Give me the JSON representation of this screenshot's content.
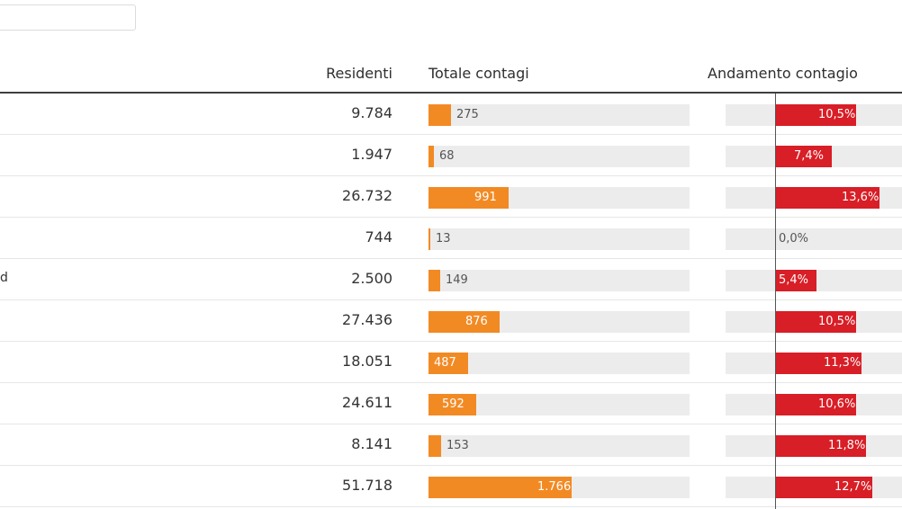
{
  "header": {
    "residenti": "Residenti",
    "totale_contagi": "Totale contagi",
    "andamento_contagio": "Andamento contagio"
  },
  "colors": {
    "totale_bar": "#f28a24",
    "andamento_bar": "#d81e26",
    "track": "#ececec"
  },
  "rows": [
    {
      "name": "",
      "residenti": "9.784",
      "totale": "275",
      "totale_value": 275,
      "andamento": "10,5%",
      "andamento_value": 10.5
    },
    {
      "name": "",
      "residenti": "1.947",
      "totale": "68",
      "totale_value": 68,
      "andamento": "7,4%",
      "andamento_value": 7.4
    },
    {
      "name": "",
      "residenti": "26.732",
      "totale": "991",
      "totale_value": 991,
      "andamento": "13,6%",
      "andamento_value": 13.6
    },
    {
      "name": "",
      "residenti": "744",
      "totale": "13",
      "totale_value": 13,
      "andamento": "0,0%",
      "andamento_value": 0
    },
    {
      "name": "d",
      "residenti": "2.500",
      "totale": "149",
      "totale_value": 149,
      "andamento": "5,4%",
      "andamento_value": 5.4
    },
    {
      "name": "",
      "residenti": "27.436",
      "totale": "876",
      "totale_value": 876,
      "andamento": "10,5%",
      "andamento_value": 10.5
    },
    {
      "name": "",
      "residenti": "18.051",
      "totale": "487",
      "totale_value": 487,
      "andamento": "11,3%",
      "andamento_value": 11.3
    },
    {
      "name": "",
      "residenti": "24.611",
      "totale": "592",
      "totale_value": 592,
      "andamento": "10,6%",
      "andamento_value": 10.6
    },
    {
      "name": "",
      "residenti": "8.141",
      "totale": "153",
      "totale_value": 153,
      "andamento": "11,8%",
      "andamento_value": 11.8
    },
    {
      "name": "",
      "residenti": "51.718",
      "totale": "1.766",
      "totale_value": 1766,
      "andamento": "12,7%",
      "andamento_value": 12.7
    }
  ]
}
